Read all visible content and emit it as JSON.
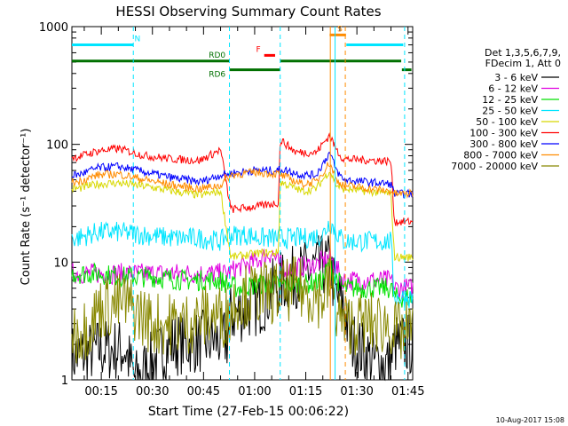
{
  "chart_data": {
    "type": "line",
    "title": "HESSI Observing Summary Count Rates",
    "xlabel": "Start Time (27-Feb-15 00:06:22)",
    "ylabel": "Count Rate (s⁻¹ detector⁻¹)",
    "yscale": "log",
    "ylim": [
      1,
      1000
    ],
    "xlim_minutes": [
      6.37,
      47.0
    ],
    "x_tick_labels": [
      "00:15",
      "00:30",
      "00:45",
      "01:00",
      "01:15",
      "01:30",
      "01:45"
    ],
    "x_tick_minutes": [
      15,
      30,
      45,
      60,
      75,
      90,
      105
    ],
    "y_tick_labels": [
      "1",
      "10",
      "100",
      "1000"
    ],
    "y_tick_values": [
      1,
      10,
      100,
      1000
    ],
    "legend_header": [
      "Det 1,3,5,6,7,9,",
      "FDecim 1, Att 0"
    ],
    "legend_placement": "right",
    "timestamp": "10-Aug-2017 15:08",
    "series": [
      {
        "name": "3 - 6 keV",
        "color": "#000000",
        "points": [
          [
            8,
            1.6
          ],
          [
            14,
            1.8
          ],
          [
            22,
            1.8
          ],
          [
            25,
            1.0
          ],
          [
            35,
            2.0
          ],
          [
            52,
            2.2
          ],
          [
            53,
            3.5
          ],
          [
            62,
            4.5
          ],
          [
            67,
            6.5
          ],
          [
            74,
            8.0
          ],
          [
            78,
            9.0
          ],
          [
            82,
            9.5
          ],
          [
            84,
            5.0
          ],
          [
            86,
            4.5
          ],
          [
            88,
            2.2
          ],
          [
            95,
            1.4
          ],
          [
            100,
            1.4
          ],
          [
            101,
            2.0
          ],
          [
            106,
            2.0
          ]
        ]
      },
      {
        "name": "6 - 12 keV",
        "color": "#e000e0",
        "points": [
          [
            8,
            8
          ],
          [
            22,
            8
          ],
          [
            25,
            8
          ],
          [
            40,
            8
          ],
          [
            52,
            8
          ],
          [
            55,
            9
          ],
          [
            60,
            10
          ],
          [
            65,
            12
          ],
          [
            68,
            9
          ],
          [
            72,
            9
          ],
          [
            78,
            9.5
          ],
          [
            82,
            11
          ],
          [
            83,
            10
          ],
          [
            86,
            7
          ],
          [
            100,
            7
          ],
          [
            101,
            6
          ],
          [
            106,
            6
          ]
        ]
      },
      {
        "name": "12 - 25 keV",
        "color": "#00e000",
        "points": [
          [
            8,
            8
          ],
          [
            14,
            8
          ],
          [
            22,
            7.5
          ],
          [
            30,
            7.5
          ],
          [
            40,
            7
          ],
          [
            50,
            7
          ],
          [
            52,
            6.5
          ],
          [
            55,
            6
          ],
          [
            62,
            6.5
          ],
          [
            67,
            6.5
          ],
          [
            75,
            6.5
          ],
          [
            80,
            7
          ],
          [
            82,
            10
          ],
          [
            83,
            8
          ],
          [
            86,
            6
          ],
          [
            100,
            6
          ],
          [
            101,
            5
          ],
          [
            106,
            5
          ]
        ]
      },
      {
        "name": "25 - 50 keV",
        "color": "#00e5ff",
        "points": [
          [
            8,
            16
          ],
          [
            14,
            18
          ],
          [
            20,
            18
          ],
          [
            28,
            17
          ],
          [
            36,
            16
          ],
          [
            44,
            16
          ],
          [
            50,
            15
          ],
          [
            52,
            17
          ],
          [
            58,
            17
          ],
          [
            62,
            16
          ],
          [
            67,
            16
          ],
          [
            75,
            16
          ],
          [
            80,
            17
          ],
          [
            82,
            22
          ],
          [
            84,
            18
          ],
          [
            86,
            15
          ],
          [
            100,
            15
          ],
          [
            101,
            5
          ],
          [
            106,
            5
          ]
        ]
      },
      {
        "name": "50 - 100 keV",
        "color": "#d8d800",
        "points": [
          [
            8,
            42
          ],
          [
            14,
            46
          ],
          [
            20,
            47
          ],
          [
            28,
            44
          ],
          [
            36,
            40
          ],
          [
            44,
            37
          ],
          [
            50,
            40
          ],
          [
            53,
            11
          ],
          [
            62,
            12
          ],
          [
            67,
            12
          ],
          [
            67.5,
            48
          ],
          [
            74,
            40
          ],
          [
            78,
            42
          ],
          [
            82,
            60
          ],
          [
            84,
            45
          ],
          [
            86,
            42
          ],
          [
            100,
            38
          ],
          [
            101,
            11
          ],
          [
            106,
            11
          ]
        ]
      },
      {
        "name": "100 - 300 keV",
        "color": "#ff0000",
        "points": [
          [
            8,
            78
          ],
          [
            14,
            88
          ],
          [
            20,
            92
          ],
          [
            28,
            80
          ],
          [
            36,
            75
          ],
          [
            44,
            73
          ],
          [
            50,
            90
          ],
          [
            53,
            28
          ],
          [
            62,
            30
          ],
          [
            67,
            32
          ],
          [
            67.5,
            110
          ],
          [
            72,
            86
          ],
          [
            78,
            85
          ],
          [
            82,
            120
          ],
          [
            84,
            90
          ],
          [
            86,
            75
          ],
          [
            100,
            72
          ],
          [
            101,
            22
          ],
          [
            106,
            22
          ]
        ]
      },
      {
        "name": "300 - 800 keV",
        "color": "#0000ff",
        "points": [
          [
            8,
            55
          ],
          [
            14,
            63
          ],
          [
            20,
            65
          ],
          [
            28,
            58
          ],
          [
            36,
            52
          ],
          [
            44,
            48
          ],
          [
            50,
            55
          ],
          [
            53,
            57
          ],
          [
            60,
            60
          ],
          [
            67,
            60
          ],
          [
            67.5,
            62
          ],
          [
            74,
            55
          ],
          [
            78,
            55
          ],
          [
            82,
            85
          ],
          [
            84,
            60
          ],
          [
            86,
            50
          ],
          [
            100,
            46
          ],
          [
            101,
            38
          ],
          [
            106,
            38
          ]
        ]
      },
      {
        "name": "800 - 7000 keV",
        "color": "#ff8c00",
        "points": [
          [
            8,
            48
          ],
          [
            14,
            55
          ],
          [
            20,
            56
          ],
          [
            28,
            50
          ],
          [
            36,
            45
          ],
          [
            44,
            42
          ],
          [
            50,
            45
          ],
          [
            53,
            55
          ],
          [
            60,
            58
          ],
          [
            67,
            56
          ],
          [
            67.5,
            55
          ],
          [
            74,
            46
          ],
          [
            78,
            48
          ],
          [
            82,
            70
          ],
          [
            84,
            50
          ],
          [
            86,
            45
          ],
          [
            100,
            40
          ],
          [
            101,
            38
          ],
          [
            106,
            38
          ]
        ]
      },
      {
        "name": "7000 - 20000 keV",
        "color": "#888800",
        "points": [
          [
            8,
            2.5
          ],
          [
            12,
            3.0
          ],
          [
            14,
            4.0
          ],
          [
            22,
            4.5
          ],
          [
            30,
            3.0
          ],
          [
            40,
            3.0
          ],
          [
            46,
            3.5
          ],
          [
            52,
            3.5
          ],
          [
            55,
            5.0
          ],
          [
            62,
            5.5
          ],
          [
            67,
            5.5
          ],
          [
            72,
            6.0
          ],
          [
            80,
            5.0
          ],
          [
            82,
            6.5
          ],
          [
            84,
            4.0
          ],
          [
            86,
            3.0
          ],
          [
            100,
            3.0
          ],
          [
            101,
            2.5
          ],
          [
            106,
            2.5
          ]
        ]
      }
    ],
    "state_bars": [
      {
        "label": "N",
        "color": "#00e5ff",
        "level": 700,
        "segments": [
          [
            6.37,
            24.4
          ],
          [
            86.9,
            103.6
          ]
        ]
      },
      {
        "label": "S",
        "color": "#ff8c00",
        "level": 850,
        "segments": [
          [
            82.0,
            86.8
          ]
        ]
      },
      {
        "label": "F",
        "color": "#ff0000",
        "level": 570,
        "segments": [
          [
            62.8,
            66.0
          ]
        ]
      },
      {
        "label": "RD0",
        "color": "#007000",
        "level": 510,
        "segments": [
          [
            6.37,
            52.5
          ],
          [
            67.5,
            103.0
          ]
        ]
      },
      {
        "label": "RD6",
        "color": "#007000",
        "level": 430,
        "segments": [
          [
            52.5,
            67.5
          ],
          [
            103.2,
            106.0
          ]
        ]
      }
    ],
    "vertical_lines": [
      {
        "minute": 24.4,
        "color": "#00e5ff",
        "style": "dashed"
      },
      {
        "minute": 52.6,
        "color": "#00e5ff",
        "style": "dashed"
      },
      {
        "minute": 67.5,
        "color": "#00e5ff",
        "style": "dashed"
      },
      {
        "minute": 82.2,
        "color": "#ff8c00",
        "style": "solid"
      },
      {
        "minute": 83.6,
        "color": "#00e5ff",
        "style": "solid"
      },
      {
        "minute": 86.6,
        "color": "#ff8c00",
        "style": "dashed"
      },
      {
        "minute": 104.0,
        "color": "#00e5ff",
        "style": "dashed"
      }
    ]
  }
}
